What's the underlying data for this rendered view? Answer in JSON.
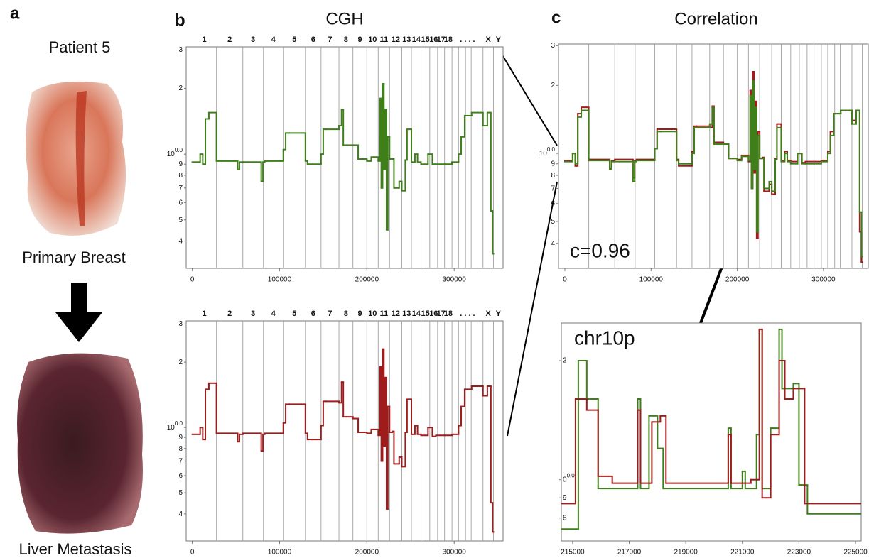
{
  "figure": {
    "panel_labels": [
      "a",
      "b",
      "c"
    ],
    "patient": "Patient 5",
    "primary": "Primary Breast",
    "metastasis": "Liver Metastasis"
  },
  "chart_data": [
    {
      "type": "line",
      "title": "CGH",
      "log_y": true,
      "chromosomes": [
        "1",
        "2",
        "3",
        "4",
        "5",
        "6",
        "7",
        "8",
        "9",
        "10",
        "11",
        "12",
        "13",
        "14",
        "15",
        "16",
        "17",
        "18",
        ". . . .",
        "X",
        "Y"
      ],
      "boundaries": [
        27700,
        57900,
        81500,
        104300,
        129600,
        147500,
        168000,
        184000,
        200000,
        213000,
        226000,
        240000,
        251000,
        262000,
        272000,
        281000,
        289000,
        297500,
        305000,
        313000,
        319500,
        333000,
        345000
      ],
      "xlim": [
        -7000,
        356000
      ],
      "xticks": [
        0,
        100000,
        200000,
        300000
      ],
      "ylim": [
        0.3,
        3.1
      ],
      "yticks": [
        3,
        2,
        {
          "value": 1,
          "label": "10",
          "superscript": "0.0"
        },
        {
          "value": 0.9,
          "label": "9"
        },
        {
          "value": 0.8,
          "label": "8"
        },
        {
          "value": 0.7,
          "label": "7"
        },
        {
          "value": 0.6,
          "label": "6"
        },
        {
          "value": 0.5,
          "label": "5"
        },
        {
          "value": 0.4,
          "label": "4"
        }
      ],
      "series": [
        {
          "color": "#3f7f1a",
          "x": [
            0,
            9000,
            12000,
            15000,
            19000,
            27700,
            52000,
            54000,
            57900,
            79000,
            81000,
            83000,
            104300,
            107000,
            111000,
            129600,
            132000,
            147500,
            150000,
            153000,
            168000,
            171000,
            173000,
            184000,
            190000,
            200000,
            205000,
            213000,
            215000,
            216500,
            218000,
            219500,
            221000,
            222500,
            224000,
            226000,
            229000,
            231000,
            237000,
            240000,
            244000,
            246000,
            251000,
            255000,
            258000,
            262000,
            270000,
            275000,
            279000,
            289000,
            297500,
            305000,
            308000,
            312000,
            320000,
            330000,
            333000,
            338000,
            342000,
            344000,
            345000
          ],
          "values": [
            0.92,
            1.0,
            0.9,
            1.45,
            1.55,
            0.93,
            0.85,
            0.92,
            0.92,
            0.75,
            0.92,
            0.93,
            1.05,
            1.25,
            1.25,
            0.93,
            0.9,
            1.0,
            1.3,
            1.3,
            1.35,
            1.6,
            1.1,
            1.1,
            0.95,
            0.93,
            0.97,
            0.93,
            1.8,
            0.7,
            2.1,
            0.85,
            1.6,
            0.45,
            1.2,
            0.95,
            0.95,
            0.7,
            0.75,
            0.68,
            0.94,
            1.3,
            0.92,
            1.0,
            0.92,
            0.9,
            1.0,
            0.9,
            0.9,
            0.9,
            0.92,
            1.0,
            1.2,
            1.5,
            1.55,
            1.55,
            1.35,
            1.55,
            0.55,
            0.35,
            0.35
          ]
        }
      ]
    },
    {
      "type": "line",
      "log_y": true,
      "chromosomes": [
        "1",
        "2",
        "3",
        "4",
        "5",
        "6",
        "7",
        "8",
        "9",
        "10",
        "11",
        "12",
        "13",
        "14",
        "15",
        "16",
        "17",
        "18",
        ". . . .",
        "X",
        "Y"
      ],
      "boundaries": [
        27700,
        57900,
        81500,
        104300,
        129600,
        147500,
        168000,
        184000,
        200000,
        213000,
        226000,
        240000,
        251000,
        262000,
        272000,
        281000,
        289000,
        297500,
        305000,
        313000,
        319500,
        333000,
        345000
      ],
      "xlim": [
        -7000,
        356000
      ],
      "xticks": [
        0,
        100000,
        200000,
        300000
      ],
      "ylim": [
        0.3,
        3.1
      ],
      "yticks": [
        3,
        2,
        {
          "value": 1,
          "label": "10",
          "superscript": "0.0"
        },
        {
          "value": 0.9,
          "label": "9"
        },
        {
          "value": 0.8,
          "label": "8"
        },
        {
          "value": 0.7,
          "label": "7"
        },
        {
          "value": 0.6,
          "label": "6"
        },
        {
          "value": 0.5,
          "label": "5"
        },
        {
          "value": 0.4,
          "label": "4"
        }
      ],
      "series": [
        {
          "color": "#9e1c1c",
          "x": [
            0,
            9000,
            12000,
            15000,
            19000,
            27700,
            52000,
            54000,
            57900,
            79000,
            81000,
            83000,
            104300,
            107000,
            111000,
            129600,
            132000,
            147500,
            150000,
            153000,
            168000,
            171000,
            173000,
            184000,
            190000,
            200000,
            205000,
            213000,
            215000,
            216500,
            218000,
            219500,
            221000,
            222500,
            224000,
            226000,
            229000,
            231000,
            237000,
            240000,
            244000,
            246000,
            251000,
            255000,
            258000,
            262000,
            270000,
            275000,
            279000,
            289000,
            297500,
            305000,
            308000,
            312000,
            320000,
            330000,
            333000,
            338000,
            342000,
            344000,
            345000
          ],
          "values": [
            0.93,
            1.0,
            0.88,
            1.5,
            1.6,
            0.94,
            0.86,
            0.93,
            0.94,
            0.78,
            0.93,
            0.94,
            1.05,
            1.28,
            1.28,
            0.94,
            0.88,
            1.02,
            1.32,
            1.32,
            1.3,
            1.62,
            1.12,
            1.1,
            0.95,
            0.94,
            0.98,
            0.92,
            1.9,
            0.7,
            2.3,
            0.82,
            1.7,
            0.42,
            1.25,
            0.95,
            0.96,
            0.68,
            0.73,
            0.66,
            0.95,
            1.35,
            0.93,
            1.02,
            0.93,
            0.92,
            1.0,
            0.91,
            0.92,
            0.92,
            0.93,
            1.02,
            1.25,
            1.5,
            1.55,
            1.55,
            1.4,
            1.55,
            0.45,
            0.33,
            0.33
          ]
        }
      ]
    },
    {
      "type": "line",
      "title": "Correlation",
      "annotation": "c=0.96",
      "log_y": true,
      "boundaries": [
        27700,
        57900,
        81500,
        104300,
        129600,
        147500,
        168000,
        184000,
        200000,
        213000,
        226000,
        240000,
        251000,
        262000,
        272000,
        281000,
        289000,
        297500,
        305000,
        313000,
        319500,
        333000,
        345000
      ],
      "xlim": [
        -7400,
        352000
      ],
      "xticks": [
        0,
        100000,
        200000,
        300000
      ],
      "ylim": [
        0.31,
        3.05
      ],
      "yticks": [
        3,
        2,
        {
          "value": 1,
          "label": "10",
          "superscript": "0.0"
        },
        {
          "value": 0.9,
          "label": "9"
        },
        {
          "value": 0.8,
          "label": "8"
        },
        {
          "value": 0.7,
          "label": "7"
        },
        {
          "value": 0.6,
          "label": "6"
        },
        {
          "value": 0.5,
          "label": "5"
        },
        {
          "value": 0.4,
          "label": "4"
        }
      ]
    },
    {
      "type": "line",
      "annotation": "chr10p",
      "log_y": true,
      "xlim": [
        214600,
        225200
      ],
      "xticks": [
        215000,
        217000,
        219000,
        221000,
        223000,
        225000
      ],
      "ylim": [
        0.7,
        2.49
      ],
      "yticks": [
        2,
        {
          "value": 1,
          "label": "0",
          "superscript": "0.0"
        },
        {
          "value": 0.9,
          "label": "9"
        },
        {
          "value": 0.8,
          "label": "8"
        }
      ],
      "series": [
        {
          "color": "#3f7f1a",
          "x": [
            214600,
            215200,
            215500,
            215900,
            217300,
            217400,
            217700,
            218000,
            218200,
            220500,
            220600,
            221000,
            221100,
            221500,
            221600,
            221700,
            222000,
            222300,
            222400,
            222800,
            223000,
            223300,
            225200
          ],
          "values": [
            0.75,
            2.0,
            1.6,
            0.95,
            1.6,
            0.95,
            1.45,
            1.2,
            0.95,
            1.35,
            0.95,
            1.05,
            0.95,
            1.3,
            2.4,
            0.95,
            1.35,
            2.4,
            1.7,
            1.75,
            0.97,
            0.82,
            0.82
          ]
        },
        {
          "color": "#9e1c1c",
          "x": [
            214600,
            215100,
            215500,
            215900,
            216400,
            217300,
            217400,
            217800,
            218100,
            218300,
            220500,
            220600,
            221300,
            221600,
            221700,
            222000,
            222300,
            222500,
            222800,
            223200,
            225200
          ],
          "values": [
            0.87,
            1.6,
            1.5,
            1.02,
            0.98,
            1.5,
            0.98,
            1.4,
            1.45,
            0.98,
            1.3,
            0.98,
            1.0,
            2.4,
            0.9,
            1.3,
            2.0,
            1.6,
            1.7,
            0.87,
            0.87
          ]
        }
      ]
    }
  ]
}
